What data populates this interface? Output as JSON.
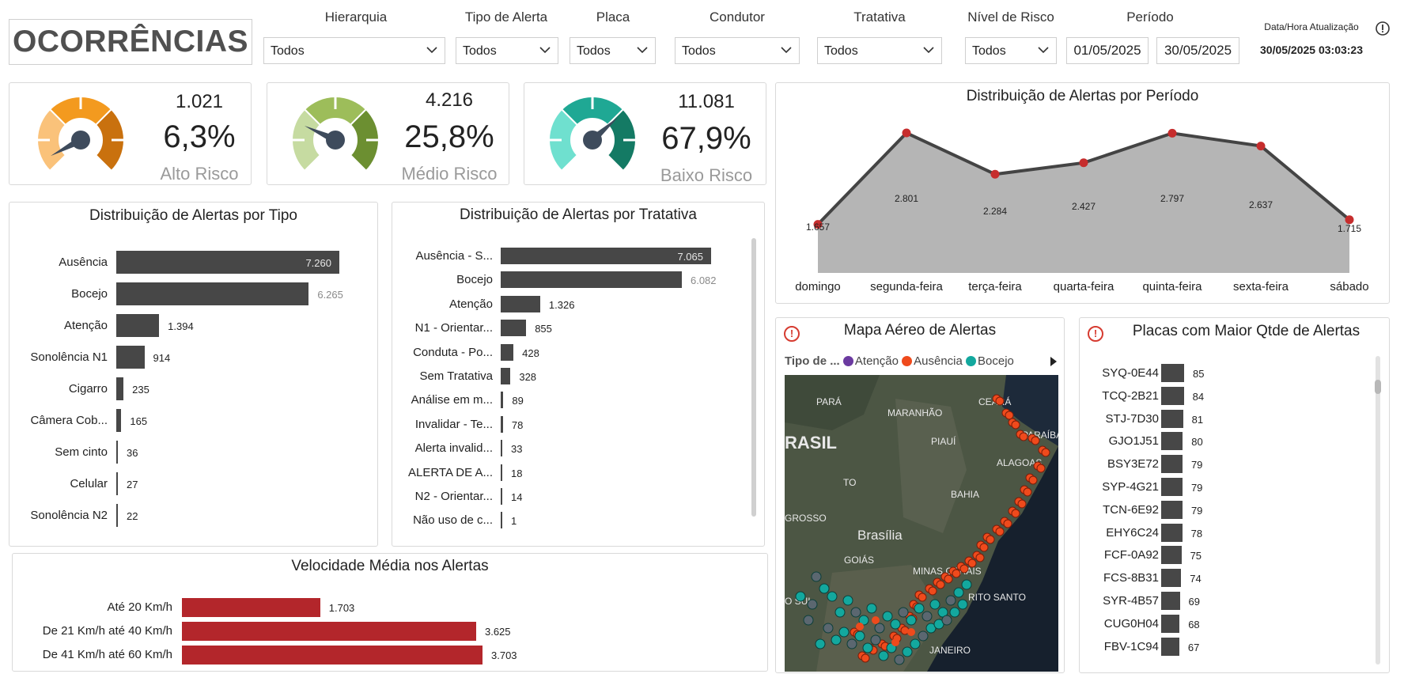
{
  "header": {
    "title": "OCORRÊNCIAS"
  },
  "filters": [
    {
      "label": "Hierarquia",
      "value": "Todos"
    },
    {
      "label": "Tipo de Alerta",
      "value": "Todos"
    },
    {
      "label": "Placa",
      "value": "Todos"
    },
    {
      "label": "Condutor",
      "value": "Todos"
    },
    {
      "label": "Tratativa",
      "value": "Todos"
    },
    {
      "label": "Nível de Risco",
      "value": "Todos"
    }
  ],
  "period": {
    "label": "Período",
    "start": "01/05/2025",
    "end": "30/05/2025"
  },
  "update": {
    "label": "Data/Hora Atualização",
    "value": "30/05/2025 03:03:23"
  },
  "kpis": [
    {
      "count": "1.021",
      "pct": "6,3%",
      "label": "Alto Risco",
      "fraction": 0.063,
      "colors": [
        "#fac27a",
        "#f39a1f",
        "#c9710e"
      ]
    },
    {
      "count": "4.216",
      "pct": "25,8%",
      "label": "Médio Risco",
      "fraction": 0.258,
      "colors": [
        "#c6dba1",
        "#9dbd5a",
        "#6c8f31"
      ]
    },
    {
      "count": "11.081",
      "pct": "67,9%",
      "label": "Baixo Risco",
      "fraction": 0.679,
      "colors": [
        "#6fe0cf",
        "#1fa894",
        "#147a64"
      ]
    }
  ],
  "chart_data": [
    {
      "type": "bar",
      "title": "Distribuição de Alertas por Tipo",
      "categories": [
        "Ausência",
        "Bocejo",
        "Atenção",
        "Sonolência N1",
        "Cigarro",
        "Câmera Cob...",
        "Sem cinto",
        "Celular",
        "Sonolência N2"
      ],
      "values": [
        7260,
        6265,
        1394,
        914,
        235,
        165,
        36,
        27,
        22
      ],
      "value_labels": [
        "7.260",
        "6.265",
        "1.394",
        "914",
        "235",
        "165",
        "36",
        "27",
        "22"
      ]
    },
    {
      "type": "bar",
      "title": "Distribuição de Alertas por Tratativa",
      "categories": [
        "Ausência - S...",
        "Bocejo",
        "Atenção",
        "N1 - Orientar...",
        "Conduta - Po...",
        "Sem Tratativa",
        "Análise em m...",
        "Invalidar - Te...",
        "Alerta invalid...",
        "ALERTA DE A...",
        "N2 - Orientar...",
        "Não uso de c..."
      ],
      "values": [
        7065,
        6082,
        1326,
        855,
        428,
        328,
        89,
        78,
        33,
        18,
        14,
        1
      ],
      "value_labels": [
        "7.065",
        "6.082",
        "1.326",
        "855",
        "428",
        "328",
        "89",
        "78",
        "33",
        "18",
        "14",
        "1"
      ]
    },
    {
      "type": "area",
      "title": "Distribuição de Alertas por Período",
      "categories": [
        "domingo",
        "segunda-feira",
        "terça-feira",
        "quarta-feira",
        "quinta-feira",
        "sexta-feira",
        "sábado"
      ],
      "values": [
        1657,
        2801,
        2284,
        2427,
        2797,
        2637,
        1715
      ],
      "value_labels": [
        "1.657",
        "2.801",
        "2.284",
        "2.427",
        "2.797",
        "2.637",
        "1.715"
      ]
    },
    {
      "type": "bar",
      "title": "Velocidade Média nos Alertas",
      "categories": [
        "Até 20 Km/h",
        "De 21 Km/h até 40 Km/h",
        "De 41 Km/h até 60 Km/h"
      ],
      "values": [
        1703,
        3625,
        3703
      ],
      "value_labels": [
        "1.703",
        "3.625",
        "3.703"
      ]
    },
    {
      "type": "bar",
      "title": "Placas com Maior Qtde de Alertas",
      "categories": [
        "SYQ-0E44",
        "TCQ-2B21",
        "STJ-7D30",
        "GJO1J51",
        "BSY3E72",
        "SYP-4G21",
        "TCN-6E92",
        "EHY6C24",
        "FCF-0A92",
        "FCS-8B31",
        "SYR-4B57",
        "CUG0H04",
        "FBV-1C94"
      ],
      "values": [
        85,
        84,
        81,
        80,
        79,
        79,
        79,
        78,
        75,
        74,
        69,
        68,
        67
      ],
      "value_labels": [
        "85",
        "84",
        "81",
        "80",
        "79",
        "79",
        "79",
        "78",
        "75",
        "74",
        "69",
        "68",
        "67"
      ]
    }
  ],
  "map": {
    "title": "Mapa Aéreo de Alertas",
    "legend_title": "Tipo de ...",
    "legend": [
      {
        "label": "Atenção",
        "color": "#6b3aa0"
      },
      {
        "label": "Ausência",
        "color": "#ef4a1c"
      },
      {
        "label": "Bocejo",
        "color": "#13a89e"
      }
    ],
    "places": [
      "PARÁ",
      "MARANHÃO",
      "CEARÁ",
      "RASIL",
      "PIAUÍ",
      "PARAÍBA",
      "ALAGOAS",
      "TO",
      "BAHIA",
      "GROSSO",
      "Brasília",
      "GOIÁS",
      "MINAS GERAIS",
      "RITO SANTO",
      "O SUL",
      "JANEIRO"
    ]
  },
  "info_icon": "info-icon"
}
